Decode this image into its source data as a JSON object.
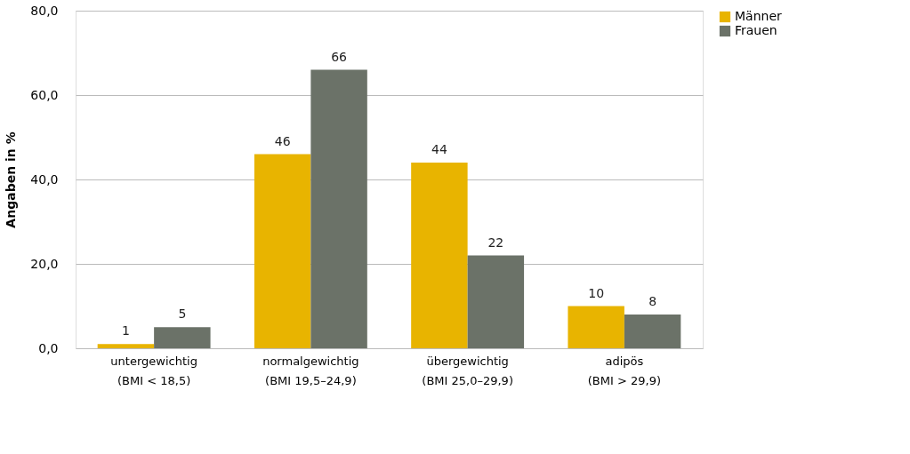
{
  "chart_data": {
    "type": "bar",
    "ylabel": "Angaben in %",
    "categories": [
      "untergewichtig\n(BMI < 18,5)",
      "normalgewichtig\n(BMI 19,5–24,9)",
      "übergewichtig\n(BMI 25,0–29,9)",
      "adipös\n(BMI > 29,9)"
    ],
    "series": [
      {
        "name": "Männer",
        "color": "#e8b400",
        "values": [
          1,
          46,
          44,
          10
        ]
      },
      {
        "name": "Frauen",
        "color": "#6b7268",
        "values": [
          5,
          66,
          22,
          8
        ]
      }
    ],
    "ylim": [
      0,
      80
    ],
    "yticks": [
      {
        "value": 0,
        "label": "0,0"
      },
      {
        "value": 20,
        "label": "20,0"
      },
      {
        "value": 40,
        "label": "40,0"
      },
      {
        "value": 60,
        "label": "60,0"
      },
      {
        "value": 80,
        "label": "80,0"
      }
    ],
    "grid": "y",
    "legend": "right",
    "data_labels": true
  }
}
